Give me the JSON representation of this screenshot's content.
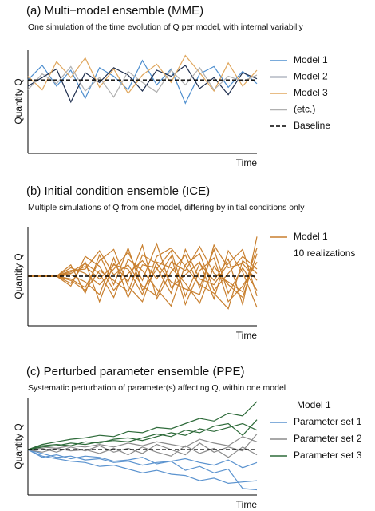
{
  "chart_data": [
    {
      "type": "line",
      "title": "(a) Multi−model ensemble (MME)",
      "subtitle": "One simulation of the time evolution of Q per model, with internal variabiliy",
      "y_label": "Quantity Q",
      "x_label": "Time",
      "x": [
        0,
        1,
        2,
        3,
        4,
        5,
        6,
        7,
        8,
        9,
        10,
        11,
        12,
        13,
        14,
        15,
        16
      ],
      "xlim": [
        0,
        16
      ],
      "ylim": [
        -6,
        2.5
      ],
      "baseline": 0,
      "baseline_label": "Baseline",
      "groups": [
        {
          "name": "Model 1",
          "color": "#4f8fcf",
          "lines": [
            [
              0,
              1.2,
              -0.5,
              0.8,
              -1.5,
              1.0,
              0.3,
              -0.8,
              1.6,
              -0.4,
              0.9,
              -1.9,
              0.5,
              1.1,
              -0.6,
              0.7,
              -0.3
            ]
          ]
        },
        {
          "name": "Model 2",
          "color": "#1f2f4f",
          "lines": [
            [
              -0.5,
              0.2,
              0.9,
              -1.8,
              0.6,
              -0.2,
              1.0,
              0.4,
              -0.9,
              0.8,
              0.3,
              1.2,
              -0.7,
              0.2,
              -1.2,
              0.6,
              0.1
            ]
          ]
        },
        {
          "name": "Model 3",
          "color": "#e0a75e",
          "lines": [
            [
              0.3,
              -0.8,
              1.5,
              0.2,
              1.8,
              -0.6,
              0.9,
              -1.1,
              0.4,
              1.3,
              -0.2,
              2.0,
              0.6,
              -0.9,
              1.4,
              -0.5,
              0.8
            ]
          ]
        },
        {
          "name": "(etc.)",
          "color": "#b0b0b0",
          "lines": [
            [
              -0.8,
              0.5,
              -0.3,
              1.1,
              -0.9,
              0.2,
              -1.4,
              0.7,
              -0.2,
              -1.0,
              0.8,
              -0.4,
              1.0,
              -0.8,
              0.3,
              -0.1,
              0.4
            ]
          ]
        }
      ]
    },
    {
      "type": "line",
      "title": "(b) Initial condition ensemble (ICE)",
      "subtitle": "Multiple simulations of Q from one model, differing by initial conditions only",
      "y_label": "Quantity Q",
      "x_label": "Time",
      "x": [
        0,
        1,
        2,
        3,
        4,
        5,
        6,
        7,
        8,
        9,
        10,
        11,
        12,
        13,
        14,
        15,
        16
      ],
      "xlim": [
        0,
        16
      ],
      "ylim": [
        -3.5,
        3.5
      ],
      "baseline": 0,
      "note": "10 realizations",
      "groups": [
        {
          "name": "Model 1",
          "color": "#c87f2e",
          "lines": [
            [
              0,
              0,
              0,
              0.8,
              -1.2,
              1.5,
              -0.6,
              2.0,
              -1.0,
              0.5,
              1.8,
              -1.4,
              0.9,
              -0.3,
              1.2,
              -2.0,
              2.8
            ],
            [
              0,
              0,
              0,
              -0.5,
              1.0,
              -1.8,
              0.9,
              -0.4,
              2.2,
              -1.6,
              0.3,
              1.5,
              -0.8,
              1.9,
              -1.2,
              0.6,
              -1.0
            ],
            [
              0,
              0,
              0,
              0.3,
              0.9,
              0.2,
              -1.5,
              1.2,
              0.4,
              -0.9,
              -2.1,
              0.8,
              1.6,
              -1.0,
              0.2,
              1.4,
              0.5
            ],
            [
              0,
              0,
              0,
              -0.2,
              -0.8,
              1.1,
              1.9,
              -0.7,
              -1.8,
              1.0,
              0.6,
              -0.5,
              -1.9,
              0.7,
              -0.6,
              -1.5,
              1.6
            ],
            [
              0,
              0,
              0,
              0.6,
              0.2,
              -0.6,
              0.5,
              1.7,
              -0.3,
              2.3,
              -0.8,
              0.1,
              1.0,
              -1.6,
              1.8,
              0.3,
              -2.2
            ],
            [
              0,
              0,
              0,
              -0.7,
              1.4,
              0.7,
              -1.0,
              0.2,
              1.1,
              -0.2,
              1.4,
              -2.0,
              0.4,
              1.3,
              -1.8,
              -0.7,
              1.0
            ],
            [
              0,
              0,
              0,
              0.1,
              -0.4,
              -1.3,
              1.3,
              -1.5,
              0.8,
              0.6,
              -1.2,
              1.9,
              -0.2,
              -0.6,
              0.9,
              1.9,
              -1.4
            ],
            [
              0,
              0,
              0,
              0.4,
              0.5,
              1.8,
              0.1,
              0.8,
              -0.7,
              -1.4,
              1.0,
              0.4,
              2.1,
              0.2,
              -0.4,
              -1.1,
              2.0
            ],
            [
              0,
              0,
              0,
              -0.3,
              -1.0,
              0.4,
              -0.3,
              -1.1,
              1.5,
              0.9,
              -0.4,
              -0.9,
              -1.3,
              2.2,
              0.6,
              0.9,
              -0.3
            ],
            [
              0,
              0,
              0,
              0.2,
              0.7,
              -0.2,
              0.8,
              0.5,
              -1.3,
              1.4,
              2.0,
              0.7,
              -0.6,
              -1.2,
              -2.3,
              1.1,
              0.2
            ]
          ]
        }
      ]
    },
    {
      "type": "line",
      "title": "(c) Perturbed parameter ensemble (PPE)",
      "subtitle": "Systematic perturbation of parameter(s) affecting Q, within one model",
      "y_label": "Quantity Q",
      "x_label": "Time",
      "x": [
        0,
        1,
        2,
        3,
        4,
        5,
        6,
        7,
        8,
        9,
        10,
        11,
        12,
        13,
        14,
        15,
        16
      ],
      "xlim": [
        0,
        16
      ],
      "ylim": [
        -3.5,
        4
      ],
      "baseline": 0,
      "legend_title": "Model 1",
      "groups": [
        {
          "name": "Parameter set 1",
          "color": "#5b93cf",
          "lines": [
            [
              0,
              -0.5,
              -0.7,
              -0.9,
              -1.0,
              -1.3,
              -1.2,
              -1.5,
              -1.8,
              -1.6,
              -1.9,
              -2.0,
              -2.4,
              -2.2,
              -2.6,
              -2.5,
              -2.4
            ],
            [
              0,
              -0.3,
              -0.6,
              -0.5,
              -0.8,
              -0.7,
              -1.0,
              -0.9,
              -1.2,
              -1.0,
              -0.9,
              -1.6,
              -1.3,
              -1.8,
              -1.5,
              -3.0,
              -3.1
            ],
            [
              0,
              -0.6,
              -0.4,
              -0.7,
              -0.5,
              -0.6,
              -0.9,
              -0.8,
              -0.6,
              -1.1,
              -0.9,
              -0.7,
              -1.0,
              -1.2,
              -0.8,
              -1.4,
              -1.0
            ]
          ]
        },
        {
          "name": "Parameter set 2",
          "color": "#8c8c8c",
          "lines": [
            [
              0,
              0.2,
              0.1,
              0.3,
              0.2,
              0.4,
              0.2,
              0.5,
              0.3,
              0.6,
              0.4,
              0.2,
              0.8,
              0.5,
              0.3,
              1.0,
              0.6
            ],
            [
              0,
              -0.2,
              0.1,
              -0.1,
              0.0,
              -0.3,
              0.1,
              -0.4,
              0.2,
              -0.2,
              -0.5,
              0.3,
              -0.3,
              0.1,
              -0.6,
              0.2,
              -0.4
            ],
            [
              0,
              0.1,
              -0.2,
              0.2,
              -0.1,
              0.3,
              -0.2,
              0.1,
              -0.3,
              0.4,
              0.0,
              -0.4,
              0.5,
              -0.2,
              0.2,
              -0.1,
              1.2
            ]
          ]
        },
        {
          "name": "Parameter set 3",
          "color": "#2e6b3a",
          "lines": [
            [
              0,
              0.4,
              0.6,
              0.8,
              0.9,
              1.1,
              1.0,
              1.4,
              1.3,
              1.7,
              1.6,
              2.0,
              2.4,
              2.2,
              2.8,
              2.6,
              3.7
            ],
            [
              0,
              0.2,
              0.3,
              0.5,
              0.4,
              0.6,
              0.7,
              0.6,
              0.9,
              1.2,
              1.0,
              1.5,
              1.3,
              1.8,
              2.0,
              1.1,
              2.3
            ],
            [
              0,
              0.3,
              0.4,
              0.3,
              0.6,
              0.5,
              0.8,
              0.9,
              0.7,
              1.0,
              1.3,
              1.1,
              1.6,
              1.4,
              1.7,
              2.0,
              1.5
            ]
          ]
        }
      ]
    }
  ]
}
